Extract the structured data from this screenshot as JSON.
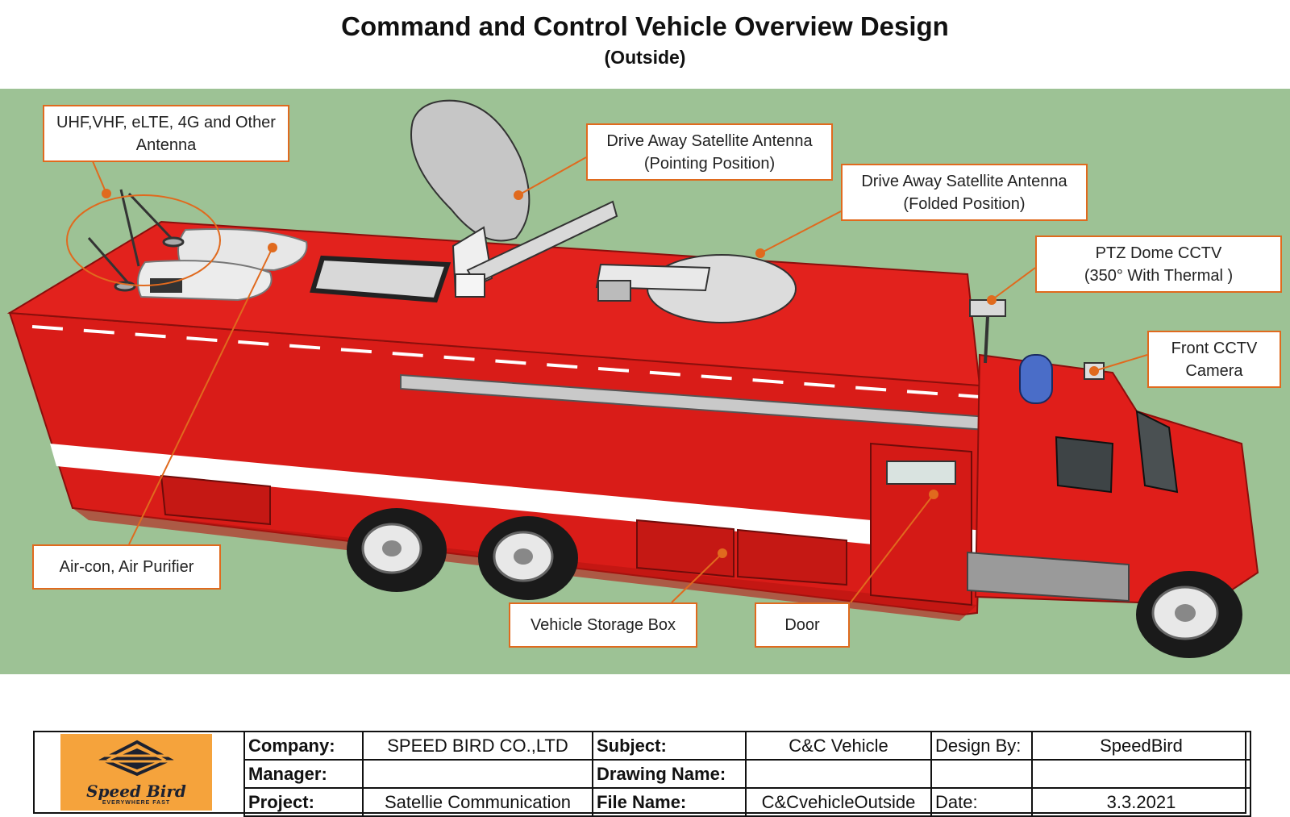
{
  "header": {
    "title": "Command and Control Vehicle Overview Design",
    "subtitle": "(Outside)"
  },
  "callouts": {
    "antenna": [
      "UHF,VHF, eLTE, 4G and Other",
      "Antenna"
    ],
    "sat_pointing": [
      "Drive Away Satellite Antenna",
      "(Pointing Position)"
    ],
    "sat_folded": [
      "Drive Away Satellite Antenna",
      "(Folded Position)"
    ],
    "ptz": [
      "PTZ Dome CCTV",
      "(350° With Thermal )"
    ],
    "front_cctv": [
      "Front CCTV",
      "Camera"
    ],
    "aircon": [
      "Air-con, Air Purifier"
    ],
    "storage": [
      "Vehicle Storage Box"
    ],
    "door": [
      "Door"
    ]
  },
  "colors": {
    "background": "#9dc295",
    "truck_red": "#e01e1a",
    "callout_border": "#e06a1e",
    "logo_bg": "#f5a33c"
  },
  "titleblock": {
    "logo_text": "Speed Bird",
    "logo_tagline": "EVERYWHERE FAST",
    "company_label": "Company:",
    "company_value": "SPEED BIRD CO.,LTD",
    "subject_label": "Subject:",
    "subject_value": "C&C Vehicle",
    "design_by_label": "Design By:",
    "design_by_value": "SpeedBird",
    "manager_label": "Manager:",
    "manager_value": "",
    "drawing_name_label": "Drawing Name:",
    "drawing_name_value": "",
    "project_label": "Project:",
    "project_value": "Satellie Communication",
    "file_name_label": "File Name:",
    "file_name_value": "C&CvehicleOutside",
    "date_label": "Date:",
    "date_value": "3.3.2021"
  }
}
